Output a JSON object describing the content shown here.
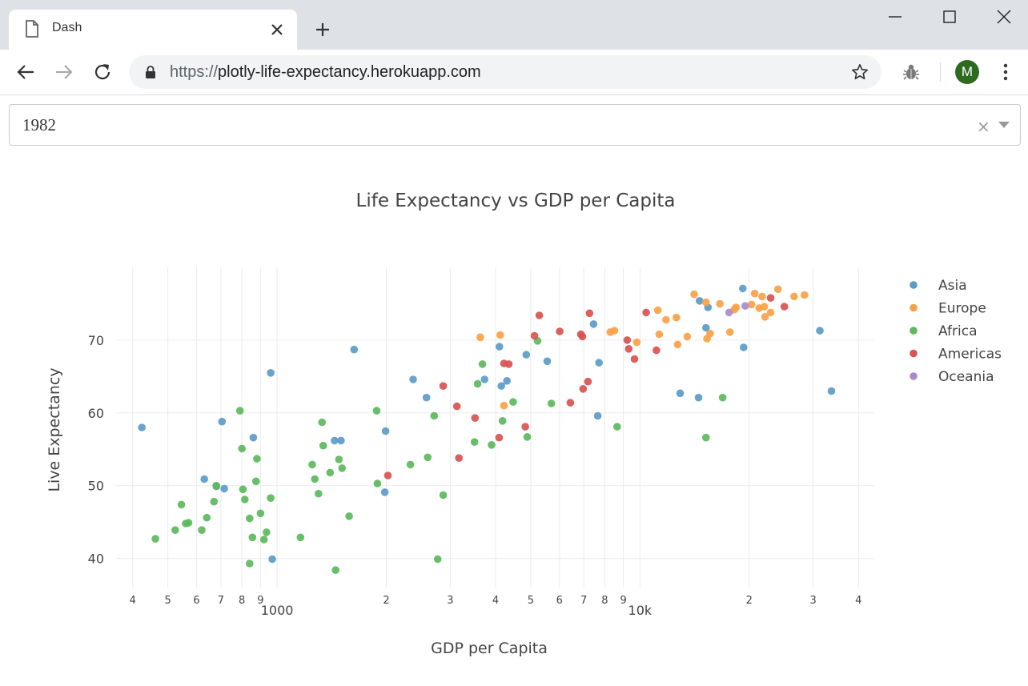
{
  "browser": {
    "tab_title": "Dash",
    "url_scheme": "https://",
    "url_host": "plotly-life-expectancy.herokuapp.com",
    "profile_initial": "M",
    "profile_color": "#2e6a1f"
  },
  "dropdown": {
    "value": "1982",
    "clear_symbol": "×"
  },
  "chart_data": {
    "type": "scatter",
    "title": "Life Expectancy vs GDP per Capita",
    "xlabel": "GDP per Capita",
    "ylabel": "Live Expectancy",
    "x_scale": "log",
    "xlim": [
      360,
      44000
    ],
    "ylim": [
      36,
      80
    ],
    "y_ticks": [
      40,
      50,
      60,
      70
    ],
    "x_ticks": [
      {
        "value": 400,
        "label": "4",
        "minor": true
      },
      {
        "value": 500,
        "label": "5",
        "minor": true
      },
      {
        "value": 600,
        "label": "6",
        "minor": true
      },
      {
        "value": 700,
        "label": "7",
        "minor": true
      },
      {
        "value": 800,
        "label": "8",
        "minor": true
      },
      {
        "value": 900,
        "label": "9",
        "minor": true
      },
      {
        "value": 1000,
        "label": "1000",
        "minor": false
      },
      {
        "value": 2000,
        "label": "2",
        "minor": true
      },
      {
        "value": 3000,
        "label": "3",
        "minor": true
      },
      {
        "value": 4000,
        "label": "4",
        "minor": true
      },
      {
        "value": 5000,
        "label": "5",
        "minor": true
      },
      {
        "value": 6000,
        "label": "6",
        "minor": true
      },
      {
        "value": 7000,
        "label": "7",
        "minor": true
      },
      {
        "value": 8000,
        "label": "8",
        "minor": true
      },
      {
        "value": 9000,
        "label": "9",
        "minor": true
      },
      {
        "value": 10000,
        "label": "10k",
        "minor": false
      },
      {
        "value": 20000,
        "label": "2",
        "minor": true
      },
      {
        "value": 30000,
        "label": "3",
        "minor": true
      },
      {
        "value": 40000,
        "label": "4",
        "minor": true
      }
    ],
    "grid": true,
    "legend_position": "top-right",
    "series": [
      {
        "name": "Asia",
        "color": "#5b9bc8",
        "points": [
          [
            424,
            58.0
          ],
          [
            630,
            50.9
          ],
          [
            680,
            49.9
          ],
          [
            705,
            58.8
          ],
          [
            715,
            49.6
          ],
          [
            860,
            56.6
          ],
          [
            960,
            65.5
          ],
          [
            970,
            39.9
          ],
          [
            1440,
            56.2
          ],
          [
            1500,
            56.2
          ],
          [
            1630,
            68.7
          ],
          [
            1980,
            49.1
          ],
          [
            1990,
            57.5
          ],
          [
            2370,
            64.6
          ],
          [
            2580,
            62.1
          ],
          [
            3730,
            64.6
          ],
          [
            4100,
            69.1
          ],
          [
            4150,
            63.7
          ],
          [
            4300,
            64.4
          ],
          [
            4860,
            68.0
          ],
          [
            5550,
            67.1
          ],
          [
            7450,
            72.2
          ],
          [
            7650,
            59.6
          ],
          [
            7710,
            66.9
          ],
          [
            12900,
            62.7
          ],
          [
            14500,
            62.1
          ],
          [
            14600,
            75.4
          ],
          [
            15400,
            74.5
          ],
          [
            15200,
            71.7
          ],
          [
            19200,
            77.1
          ],
          [
            19300,
            69.0
          ],
          [
            31300,
            71.3
          ],
          [
            33700,
            63.0
          ]
        ]
      },
      {
        "name": "Europe",
        "color": "#f8a246",
        "points": [
          [
            3630,
            70.4
          ],
          [
            4120,
            70.7
          ],
          [
            4220,
            61.0
          ],
          [
            8280,
            71.1
          ],
          [
            8500,
            71.3
          ],
          [
            9800,
            69.7
          ],
          [
            11200,
            74.1
          ],
          [
            11300,
            70.8
          ],
          [
            11800,
            72.8
          ],
          [
            12700,
            69.4
          ],
          [
            12600,
            73.1
          ],
          [
            13500,
            70.5
          ],
          [
            14100,
            76.3
          ],
          [
            15200,
            75.2
          ],
          [
            15300,
            70.2
          ],
          [
            15600,
            70.9
          ],
          [
            16600,
            75.0
          ],
          [
            17700,
            71.1
          ],
          [
            18200,
            74.2
          ],
          [
            18400,
            74.5
          ],
          [
            20300,
            74.9
          ],
          [
            20700,
            76.4
          ],
          [
            21300,
            74.4
          ],
          [
            21700,
            76.0
          ],
          [
            22000,
            74.6
          ],
          [
            22100,
            73.2
          ],
          [
            22900,
            73.8
          ],
          [
            24000,
            77.0
          ],
          [
            26600,
            76.0
          ],
          [
            28400,
            76.2
          ]
        ]
      },
      {
        "name": "Africa",
        "color": "#5cb85c",
        "points": [
          [
            462,
            42.7
          ],
          [
            524,
            43.9
          ],
          [
            545,
            47.4
          ],
          [
            560,
            44.8
          ],
          [
            570,
            44.9
          ],
          [
            620,
            43.9
          ],
          [
            640,
            45.6
          ],
          [
            670,
            47.8
          ],
          [
            680,
            50.0
          ],
          [
            790,
            60.3
          ],
          [
            800,
            55.1
          ],
          [
            805,
            49.5
          ],
          [
            815,
            48.1
          ],
          [
            840,
            45.5
          ],
          [
            840,
            39.3
          ],
          [
            855,
            42.9
          ],
          [
            875,
            50.6
          ],
          [
            880,
            53.7
          ],
          [
            900,
            46.2
          ],
          [
            920,
            42.6
          ],
          [
            935,
            43.6
          ],
          [
            960,
            48.3
          ],
          [
            1160,
            42.9
          ],
          [
            1250,
            52.9
          ],
          [
            1270,
            50.9
          ],
          [
            1300,
            48.9
          ],
          [
            1330,
            58.7
          ],
          [
            1340,
            55.5
          ],
          [
            1400,
            51.8
          ],
          [
            1450,
            38.4
          ],
          [
            1480,
            53.6
          ],
          [
            1510,
            52.4
          ],
          [
            1580,
            45.8
          ],
          [
            1880,
            60.3
          ],
          [
            1890,
            50.3
          ],
          [
            2330,
            52.9
          ],
          [
            2600,
            53.9
          ],
          [
            2710,
            59.6
          ],
          [
            2770,
            39.9
          ],
          [
            2870,
            48.7
          ],
          [
            3500,
            56.0
          ],
          [
            3570,
            64.0
          ],
          [
            3680,
            66.7
          ],
          [
            3900,
            55.6
          ],
          [
            4180,
            58.9
          ],
          [
            4470,
            61.5
          ],
          [
            4890,
            56.7
          ],
          [
            5220,
            69.9
          ],
          [
            5700,
            61.3
          ],
          [
            8650,
            58.1
          ],
          [
            15200,
            56.6
          ],
          [
            16900,
            62.1
          ]
        ]
      },
      {
        "name": "Americas",
        "color": "#d9534f",
        "points": [
          [
            2020,
            51.4
          ],
          [
            2870,
            63.7
          ],
          [
            3130,
            60.9
          ],
          [
            3170,
            53.8
          ],
          [
            3510,
            59.3
          ],
          [
            4090,
            56.6
          ],
          [
            4220,
            66.8
          ],
          [
            4350,
            66.7
          ],
          [
            4830,
            58.1
          ],
          [
            5120,
            70.6
          ],
          [
            5280,
            73.4
          ],
          [
            6010,
            71.2
          ],
          [
            6430,
            61.4
          ],
          [
            6870,
            70.8
          ],
          [
            6940,
            70.5
          ],
          [
            6970,
            63.3
          ],
          [
            7190,
            64.3
          ],
          [
            7260,
            73.7
          ],
          [
            9220,
            70.0
          ],
          [
            9310,
            68.8
          ],
          [
            9660,
            67.4
          ],
          [
            10400,
            73.8
          ],
          [
            11100,
            68.6
          ],
          [
            22900,
            75.8
          ],
          [
            25000,
            74.6
          ]
        ]
      },
      {
        "name": "Oceania",
        "color": "#a98bcb",
        "points": [
          [
            17600,
            73.8
          ],
          [
            19500,
            74.7
          ]
        ]
      }
    ]
  }
}
